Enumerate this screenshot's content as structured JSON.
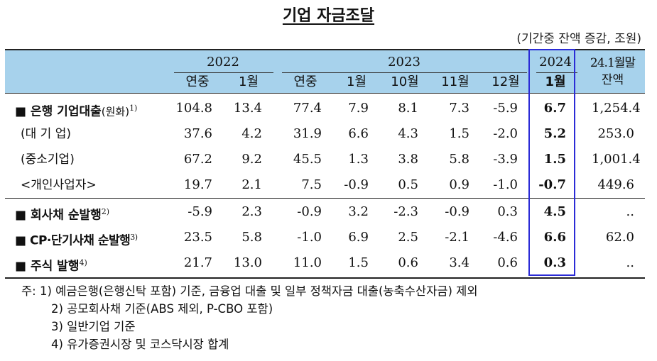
{
  "title": "기업 자금조달",
  "unit": "(기간중 잔액 증감, 조원)",
  "header": {
    "years": [
      "2022",
      "2023",
      "2024"
    ],
    "last_col_line1": "24.1월말",
    "last_col_line2": "잔액",
    "subcols": [
      "연중",
      "1월",
      "연중",
      "1월",
      "10월",
      "11월",
      "12월",
      "1월"
    ]
  },
  "rows": [
    {
      "label": "■ 은행 기업대출",
      "suffix": "(원화)",
      "sup": "1)",
      "bold": true,
      "values": [
        "104.8",
        "13.4",
        "77.4",
        "7.9",
        "8.1",
        "7.3",
        "-5.9",
        "6.7",
        "1,254.4"
      ]
    },
    {
      "label": "(대 기 업)",
      "suffix": "",
      "sup": "",
      "bold": false,
      "values": [
        "37.6",
        "4.2",
        "31.9",
        "6.6",
        "4.3",
        "1.5",
        "-2.0",
        "5.2",
        "253.0"
      ]
    },
    {
      "label": "(중소기업)",
      "suffix": "",
      "sup": "",
      "bold": false,
      "values": [
        "67.2",
        "9.2",
        "45.5",
        "1.3",
        "3.8",
        "5.8",
        "-3.9",
        "1.5",
        "1,001.4"
      ]
    },
    {
      "label": " <개인사업자>",
      "suffix": "",
      "sup": "",
      "bold": false,
      "values": [
        "19.7",
        "2.1",
        "7.5",
        "-0.9",
        "0.5",
        "0.9",
        "-1.0",
        "-0.7",
        "449.6"
      ]
    },
    {
      "label": "■ 회사채 순발행",
      "suffix": "",
      "sup": "2)",
      "bold": true,
      "values": [
        "-5.9",
        "2.3",
        "-0.9",
        "3.2",
        "-2.3",
        "-0.9",
        "0.3",
        "4.5",
        ".."
      ]
    },
    {
      "label": "■ CP·단기사채 순발행",
      "suffix": "",
      "sup": "3)",
      "bold": true,
      "values": [
        "23.5",
        "5.8",
        "-1.0",
        "6.9",
        "2.5",
        "-2.1",
        "-4.6",
        "6.6",
        "62.0"
      ]
    },
    {
      "label": "■ 주식 발행",
      "suffix": "",
      "sup": "4)",
      "bold": true,
      "values": [
        "21.7",
        "13.0",
        "11.0",
        "1.5",
        "0.6",
        "3.4",
        "0.6",
        "0.3",
        ".."
      ]
    }
  ],
  "notes": {
    "prefix": "주:",
    "items": [
      "1) 예금은행(은행신탁 포함) 기준, 금융업 대출 및 일부 정책자금 대출(농축수산자금) 제외",
      "2) 공모회사채 기준(ABS 제외, P-CBO 포함)",
      "3) 일반기업 기준",
      "4) 유가증권시장 및 코스닥시장 합계"
    ]
  }
}
